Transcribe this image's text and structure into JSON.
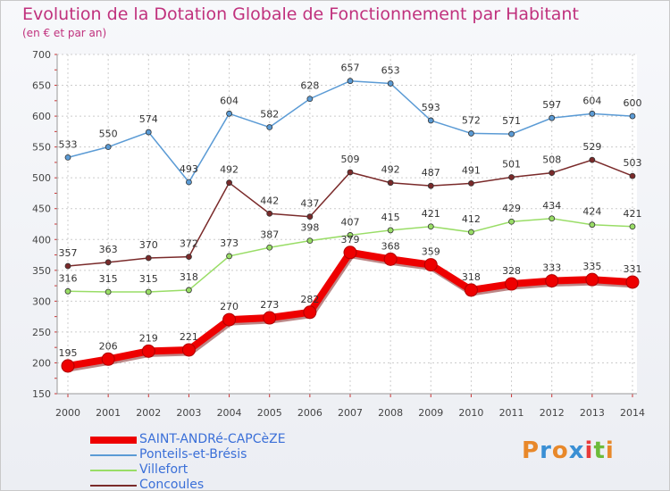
{
  "header": {
    "title": "Evolution de la Dotation Globale de Fonctionnement par Habitant",
    "subtitle": "(en € et par an)"
  },
  "logo": {
    "text": "Proxiti",
    "colors": [
      "#e8882a",
      "#3a8fd4",
      "#e8882a",
      "#3a8fd4",
      "#e83a3a",
      "#6dbb3a",
      "#e8882a"
    ]
  },
  "chart_data": {
    "type": "line",
    "title": "Evolution de la Dotation Globale de Fonctionnement par Habitant",
    "subtitle": "(en € et par an)",
    "xlabel": "",
    "ylabel": "",
    "x": [
      2000,
      2001,
      2002,
      2003,
      2004,
      2005,
      2006,
      2007,
      2008,
      2009,
      2010,
      2011,
      2012,
      2013,
      2014
    ],
    "ylim": [
      150,
      700
    ],
    "yticks": [
      150,
      200,
      250,
      300,
      350,
      400,
      450,
      500,
      550,
      600,
      650,
      700
    ],
    "grid": true,
    "legend_position": "bottom-left",
    "series": [
      {
        "name": "SAINT-ANDRé-CAPCèZE",
        "color": "#ee0000",
        "emphasis": true,
        "values": [
          195,
          206,
          219,
          221,
          270,
          273,
          282,
          379,
          368,
          359,
          318,
          328,
          333,
          335,
          331
        ]
      },
      {
        "name": "Ponteils-et-Brésis",
        "color": "#5b9bd5",
        "emphasis": false,
        "values": [
          533,
          550,
          574,
          493,
          604,
          582,
          628,
          657,
          653,
          593,
          572,
          571,
          597,
          604,
          600
        ]
      },
      {
        "name": "Villefort",
        "color": "#99dd66",
        "emphasis": false,
        "values": [
          316,
          315,
          315,
          318,
          373,
          387,
          398,
          407,
          415,
          421,
          412,
          429,
          434,
          424,
          421
        ]
      },
      {
        "name": "Concoules",
        "color": "#7a2a2a",
        "emphasis": false,
        "values": [
          357,
          363,
          370,
          372,
          492,
          442,
          437,
          509,
          492,
          487,
          491,
          501,
          508,
          529,
          503
        ]
      }
    ]
  }
}
